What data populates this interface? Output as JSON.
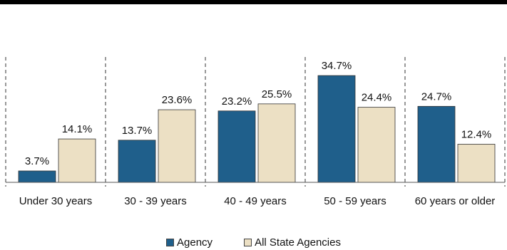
{
  "chart_data": {
    "type": "bar",
    "title": "",
    "xlabel": "",
    "ylabel": "",
    "categories": [
      "Under 30 years",
      "30 - 39 years",
      "40 - 49 years",
      "50 - 59 years",
      "60 years or older"
    ],
    "series": [
      {
        "name": "Agency",
        "color": "#1f5f8b",
        "values": [
          3.7,
          13.7,
          23.2,
          34.7,
          24.7
        ],
        "labels": [
          "3.7%",
          "13.7%",
          "23.2%",
          "34.7%",
          "24.7%"
        ]
      },
      {
        "name": "All State Agencies",
        "color": "#ece0c4",
        "values": [
          14.1,
          23.6,
          25.5,
          24.4,
          12.4
        ],
        "labels": [
          "14.1%",
          "23.6%",
          "25.5%",
          "24.4%",
          "12.4%"
        ]
      }
    ],
    "ylim": [
      0,
      40
    ],
    "grid": false,
    "separators": "dashed vertical between categories",
    "legend_position": "bottom-center"
  },
  "legend": {
    "items": [
      {
        "label": "Agency",
        "color": "#1f5f8b"
      },
      {
        "label": "All State Agencies",
        "color": "#ece0c4"
      }
    ]
  }
}
